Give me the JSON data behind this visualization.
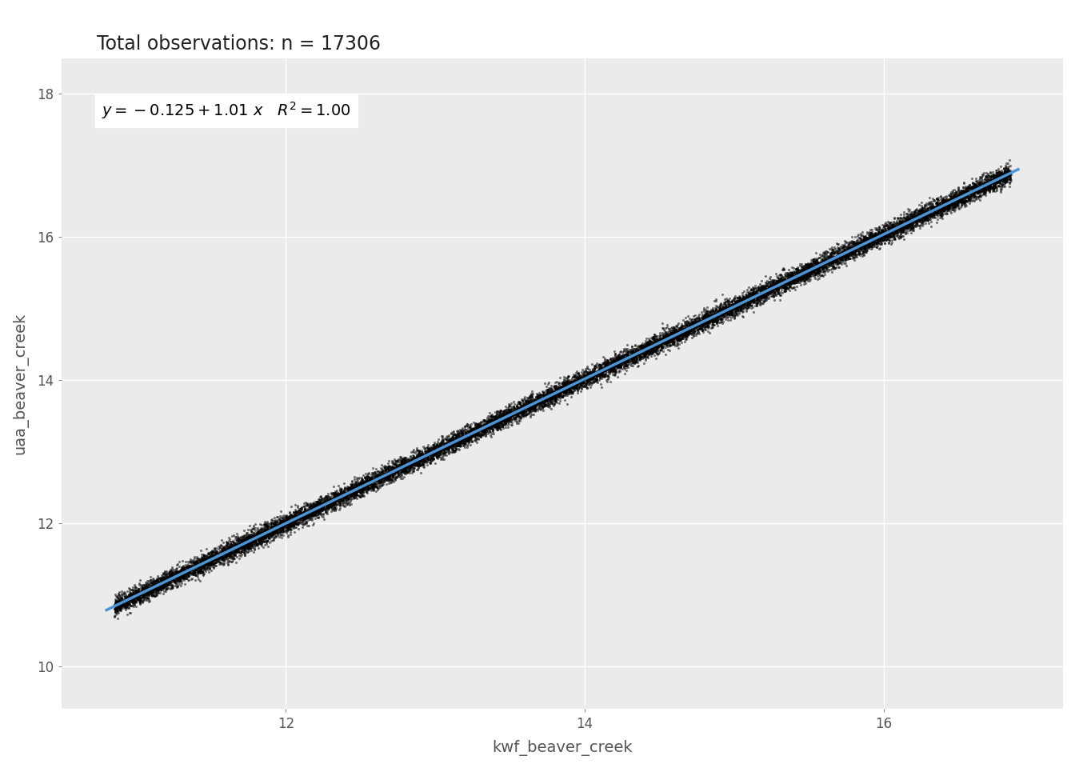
{
  "title": "Total observations: n = 17306",
  "xlabel": "kwf_beaver_creek",
  "ylabel": "uaa_beaver_creek",
  "intercept": -0.125,
  "slope": 1.01,
  "x_data_min": 10.85,
  "x_data_max": 16.85,
  "xlim": [
    10.5,
    17.2
  ],
  "ylim": [
    9.4,
    18.5
  ],
  "xticks": [
    12,
    14,
    16
  ],
  "yticks": [
    10,
    12,
    14,
    16,
    18
  ],
  "n_points": 17306,
  "noise_std": 0.065,
  "background_color": "#EBEBEB",
  "grid_color": "#FFFFFF",
  "line_color": "#4D94D5",
  "point_color": "#000000",
  "point_alpha": 0.5,
  "point_size": 5,
  "line_width": 2.5,
  "title_fontsize": 17,
  "label_fontsize": 14,
  "tick_fontsize": 12,
  "annotation_fontsize": 14,
  "title_color": "#222222",
  "tick_color": "#555555"
}
